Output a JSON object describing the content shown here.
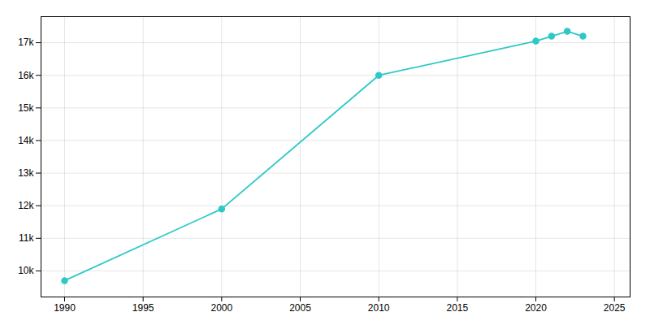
{
  "chart_data": {
    "type": "line",
    "x": [
      1990,
      2000,
      2010,
      2020,
      2021,
      2022,
      2023
    ],
    "values": [
      9700,
      11900,
      16000,
      17050,
      17200,
      17350,
      17200
    ],
    "color": "#2ec8c8",
    "marker": "circle",
    "xlim": [
      1988.5,
      2026
    ],
    "ylim": [
      9200,
      17800
    ],
    "xticks": [
      1990,
      1995,
      2000,
      2005,
      2010,
      2015,
      2020,
      2025
    ],
    "yticks": [
      {
        "value": 10000,
        "label": "10k"
      },
      {
        "value": 11000,
        "label": "11k"
      },
      {
        "value": 12000,
        "label": "12k"
      },
      {
        "value": 13000,
        "label": "13k"
      },
      {
        "value": 14000,
        "label": "14k"
      },
      {
        "value": 15000,
        "label": "15k"
      },
      {
        "value": 16000,
        "label": "16k"
      },
      {
        "value": 17000,
        "label": "17k"
      }
    ],
    "grid": true
  }
}
